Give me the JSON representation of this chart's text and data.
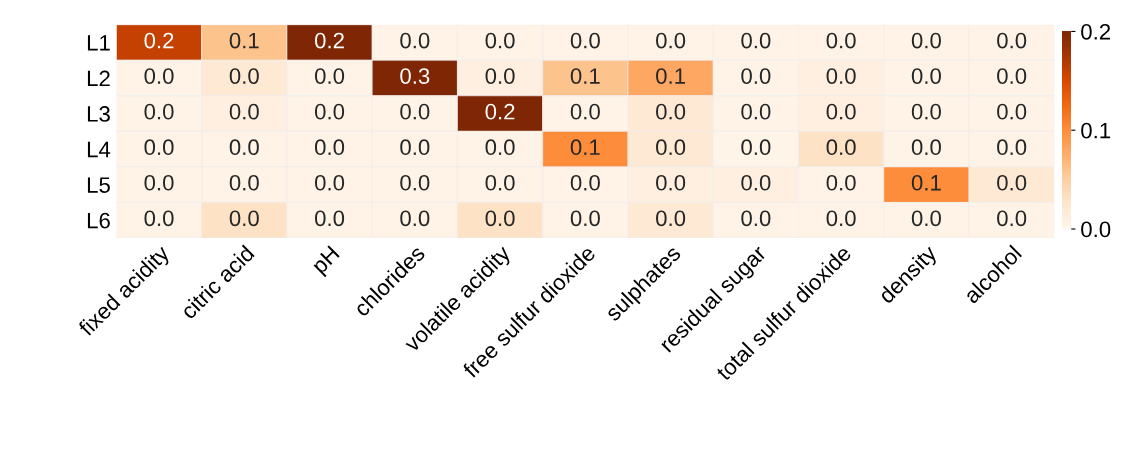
{
  "chart_data": {
    "type": "heatmap",
    "categories": [
      "fixed acidity",
      "citric acid",
      "pH",
      "chlorides",
      "volatile acidity",
      "free sulfur dioxide",
      "sulphates",
      "residual sugar",
      "total sulfur dioxide",
      "density",
      "alcohol"
    ],
    "y_categories": [
      "L1",
      "L2",
      "L3",
      "L4",
      "L5",
      "L6"
    ],
    "cells": [
      [
        0.16,
        0.06,
        0.2,
        0.005,
        0.005,
        0.005,
        0.005,
        0.005,
        0.005,
        0.005,
        0.005
      ],
      [
        0.005,
        0.02,
        0.005,
        0.25,
        0.01,
        0.06,
        0.08,
        0.005,
        0.01,
        0.005,
        0.005
      ],
      [
        0.005,
        0.01,
        0.005,
        0.005,
        0.2,
        0.005,
        0.02,
        0.005,
        0.01,
        0.005,
        0.005
      ],
      [
        0.005,
        0.005,
        0.005,
        0.005,
        0.005,
        0.1,
        0.02,
        0.003,
        0.03,
        0.005,
        0.005
      ],
      [
        0.005,
        0.005,
        0.005,
        0.005,
        0.005,
        0.005,
        0.01,
        0.01,
        0.005,
        0.1,
        0.02
      ],
      [
        0.005,
        0.03,
        0.005,
        0.005,
        0.03,
        0.005,
        0.02,
        0.005,
        0.005,
        0.005,
        0.005
      ]
    ],
    "cell_labels": [
      [
        "0.2",
        "0.1",
        "0.2",
        "0.0",
        "0.0",
        "0.0",
        "0.0",
        "0.0",
        "0.0",
        "0.0",
        "0.0"
      ],
      [
        "0.0",
        "0.0",
        "0.0",
        "0.3",
        "0.0",
        "0.1",
        "0.1",
        "0.0",
        "0.0",
        "0.0",
        "0.0"
      ],
      [
        "0.0",
        "0.0",
        "0.0",
        "0.0",
        "0.2",
        "0.0",
        "0.0",
        "0.0",
        "0.0",
        "0.0",
        "0.0"
      ],
      [
        "0.0",
        "0.0",
        "0.0",
        "0.0",
        "0.0",
        "0.1",
        "0.0",
        "0.0",
        "0.0",
        "0.0",
        "0.0"
      ],
      [
        "0.0",
        "0.0",
        "0.0",
        "0.0",
        "0.0",
        "0.0",
        "0.0",
        "0.0",
        "0.0",
        "0.1",
        "0.0"
      ],
      [
        "0.0",
        "0.0",
        "0.0",
        "0.0",
        "0.0",
        "0.0",
        "0.0",
        "0.0",
        "0.0",
        "0.0",
        "0.0"
      ]
    ],
    "clim": [
      0,
      0.2
    ],
    "cticks": [
      {
        "value": 0,
        "label": "0.0"
      },
      {
        "value": 0.1,
        "label": "0.1"
      },
      {
        "value": 0.2,
        "label": "0.2"
      }
    ]
  }
}
